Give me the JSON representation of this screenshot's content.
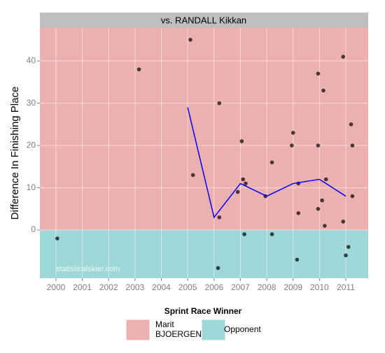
{
  "chart_data": {
    "type": "scatter",
    "title": "vs. RANDALL Kikkan",
    "y_label": "Difference In Finishing Place",
    "watermark": "statisticalskier.com",
    "xlim": [
      1999.39,
      2011.85
    ],
    "xticks": [
      2000,
      2001,
      2002,
      2003,
      2004,
      2005,
      2006,
      2007,
      2008,
      2009,
      2010,
      2011
    ],
    "ylim": [
      -11.4,
      47.8
    ],
    "yticks": [
      0,
      10,
      20,
      30,
      40
    ],
    "grid": true,
    "legend_title": "Sprint Race Winner",
    "regions": [
      {
        "name": "Marit\nBJOERGEN",
        "color": "#edb0b0",
        "ylim": [
          0,
          47.8
        ]
      },
      {
        "name": "Opponent",
        "color": "#9ed7d7",
        "ylim": [
          -11.4,
          0
        ]
      }
    ],
    "series": [
      {
        "type": "scatter",
        "color": "#000000",
        "opacity": 0.7,
        "x": [
          2000.05,
          2003.15,
          2005.1,
          2005.2,
          2006.2,
          2006.2,
          2006.15,
          2007.05,
          2007.1,
          2007.2,
          2006.9,
          2007.15,
          2008.2,
          2008.2,
          2007.95,
          2009.0,
          2008.95,
          2009.2,
          2009.2,
          2009.15,
          2009.95,
          2009.95,
          2009.95,
          2010.15,
          2010.1,
          2010.25,
          2010.2,
          2010.9,
          2011.2,
          2011.25,
          2011.25,
          2011.1,
          2011.0,
          2010.9
        ],
        "values": [
          -2,
          38,
          45,
          13,
          30,
          3,
          -9,
          21,
          12,
          11,
          9,
          -1,
          16,
          -1,
          8,
          23,
          20,
          11,
          4,
          -7,
          37,
          20,
          5,
          33,
          7,
          12,
          1,
          41,
          25,
          20,
          8,
          -4,
          -6,
          2
        ]
      },
      {
        "type": "line",
        "color": "#0000ff",
        "x": [
          2005,
          2006,
          2007,
          2008,
          2009,
          2010,
          2011
        ],
        "values": [
          29,
          3,
          11,
          8,
          11,
          12,
          8
        ]
      }
    ]
  }
}
